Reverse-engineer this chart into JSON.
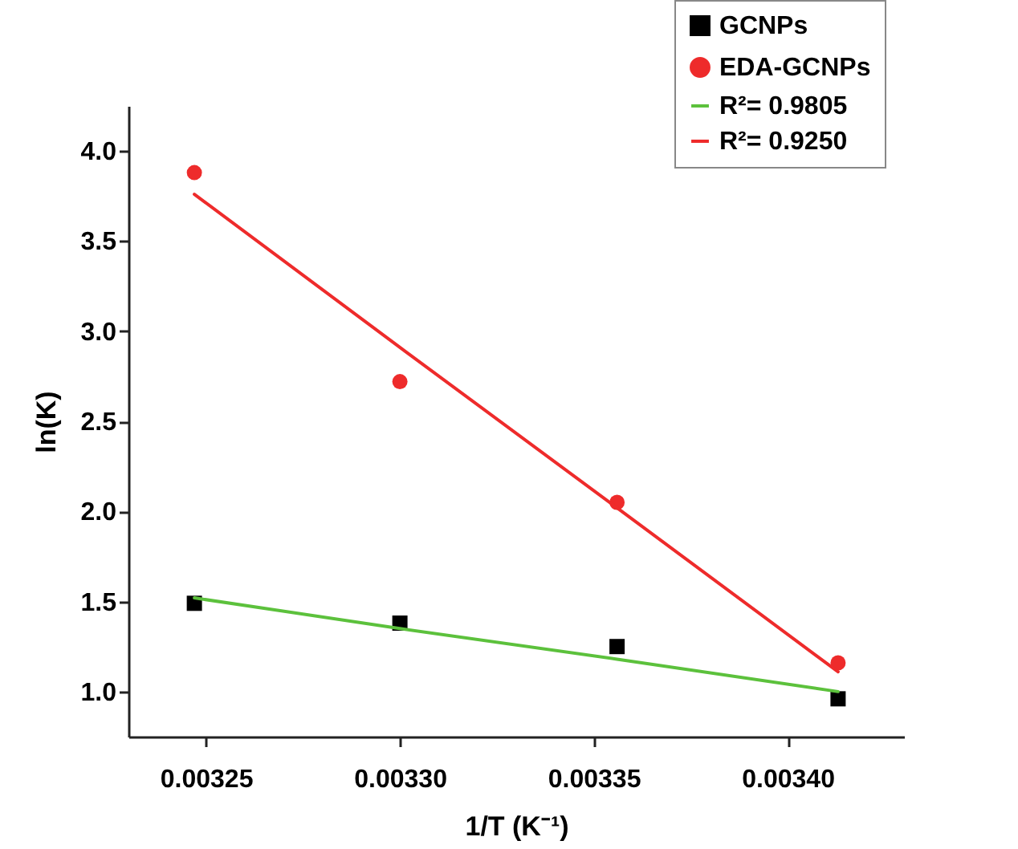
{
  "chart_data": {
    "type": "scatter",
    "xlabel": "1/T (K⁻¹)",
    "ylabel": "ln(K)",
    "xlim": [
      0.00323,
      0.00343
    ],
    "xticks": [
      0.00325,
      {
        "value": 0.0033,
        "label": "0.00330"
      },
      0.00335,
      {
        "value": 0.0034,
        "label": "0.00340"
      }
    ],
    "ylim": [
      0.75,
      4.25
    ],
    "yticks": [
      {
        "value": 1,
        "label": "1.0"
      },
      1.5,
      {
        "value": 2,
        "label": "2.0"
      },
      2.5,
      {
        "value": 3,
        "label": "3.0"
      },
      3.5,
      {
        "value": 4,
        "label": "4.0"
      }
    ],
    "x": [
      0.003247,
      0.0033,
      0.003356,
      0.003413
    ],
    "grid": false,
    "legend": "top right",
    "series": [
      {
        "name": "GCNPs",
        "color": "#000000",
        "marker": "square",
        "values": [
          1.49,
          1.38,
          1.25,
          0.96
        ]
      },
      {
        "name": "EDA-GCNPs",
        "color": "#ee2b2b",
        "marker": "circle",
        "values": [
          3.88,
          2.72,
          2.05,
          1.16
        ]
      },
      {
        "name": "R²= 0.9805",
        "type": "line",
        "color": "#5cc13c",
        "marker": "none",
        "values": [
          1.52,
          1.35,
          1.18,
          1.0
        ]
      },
      {
        "name": "R²= 0.9250",
        "type": "line",
        "color": "#ee2b2b",
        "marker": "none",
        "values": [
          3.76,
          2.91,
          2.02,
          1.11
        ]
      }
    ]
  }
}
